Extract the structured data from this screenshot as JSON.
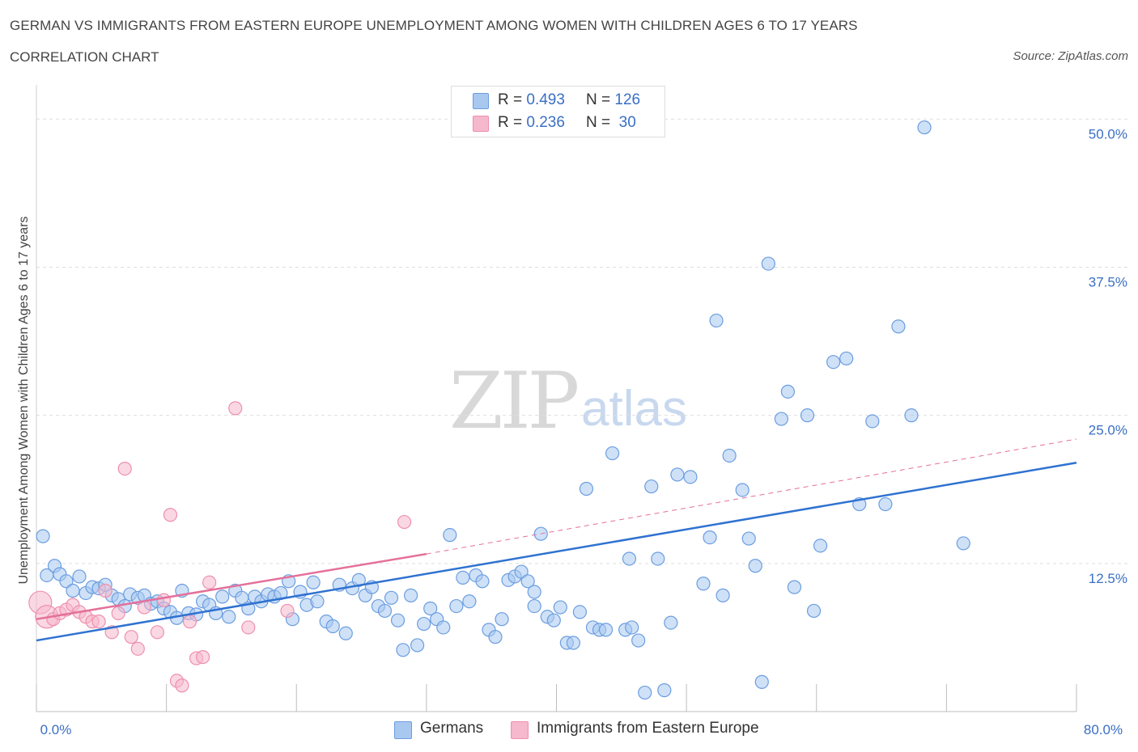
{
  "title": "GERMAN VS IMMIGRANTS FROM EASTERN EUROPE UNEMPLOYMENT AMONG WOMEN WITH CHILDREN AGES 6 TO 17 YEARS",
  "subtitle": "CORRELATION CHART",
  "source": "Source: ZipAtlas.com",
  "watermark": {
    "zip": "ZIP",
    "atlas": "atlas"
  },
  "legend": {
    "rows": [
      {
        "r_label": "R = ",
        "r_value": "0.493",
        "n_label": "N = ",
        "n_value": "126",
        "color": "#a8c8f0"
      },
      {
        "r_label": "R = ",
        "r_value": "0.236",
        "n_label": "N = ",
        "n_value": " 30",
        "color": "#f5b8cc"
      }
    ]
  },
  "bottom_legend": [
    {
      "label": "Germans",
      "color": "#a8c8f0"
    },
    {
      "label": "Immigrants from Eastern Europe",
      "color": "#f5b8cc"
    }
  ],
  "chart_data": {
    "type": "scatter",
    "title": "",
    "xlabel": "",
    "ylabel": "Unemployment Among Women with Children Ages 6 to 17 years",
    "xlim": [
      0,
      80
    ],
    "ylim": [
      0,
      52
    ],
    "x_tick_labels": [
      {
        "value": 0,
        "label": "0.0%"
      },
      {
        "value": 80,
        "label": "80.0%"
      }
    ],
    "y_tick_labels": [
      {
        "value": 12.5,
        "label": "12.5%"
      },
      {
        "value": 25,
        "label": "25.0%"
      },
      {
        "value": 37.5,
        "label": "37.5%"
      },
      {
        "value": 50,
        "label": "50.0%"
      }
    ],
    "grid": true,
    "series": [
      {
        "name": "Germans",
        "color": "#6b9de0",
        "fill": "#a8c8f0",
        "trend": {
          "x": [
            0,
            80
          ],
          "y": [
            6.0,
            21.0
          ],
          "style": "solid",
          "color": "#2f72d0"
        },
        "points": [
          [
            0.5,
            14.8
          ],
          [
            0.8,
            11.5
          ],
          [
            1.4,
            12.3
          ],
          [
            1.8,
            11.6
          ],
          [
            2.3,
            11.0
          ],
          [
            2.8,
            10.2
          ],
          [
            3.3,
            11.4
          ],
          [
            3.8,
            10.0
          ],
          [
            4.3,
            10.5
          ],
          [
            4.8,
            10.4
          ],
          [
            5.3,
            10.7
          ],
          [
            5.8,
            9.8
          ],
          [
            6.3,
            9.5
          ],
          [
            6.8,
            8.9
          ],
          [
            7.2,
            9.9
          ],
          [
            7.8,
            9.6
          ],
          [
            8.3,
            9.8
          ],
          [
            8.8,
            9.1
          ],
          [
            9.3,
            9.3
          ],
          [
            9.8,
            8.7
          ],
          [
            10.3,
            8.4
          ],
          [
            10.8,
            7.9
          ],
          [
            11.2,
            10.2
          ],
          [
            11.7,
            8.3
          ],
          [
            12.3,
            8.2
          ],
          [
            12.8,
            9.3
          ],
          [
            13.3,
            9.0
          ],
          [
            13.8,
            8.3
          ],
          [
            14.3,
            9.7
          ],
          [
            14.8,
            8.0
          ],
          [
            15.3,
            10.2
          ],
          [
            15.8,
            9.6
          ],
          [
            16.3,
            8.7
          ],
          [
            16.8,
            9.7
          ],
          [
            17.3,
            9.3
          ],
          [
            17.8,
            9.9
          ],
          [
            18.3,
            9.7
          ],
          [
            18.8,
            10.0
          ],
          [
            19.4,
            11.0
          ],
          [
            19.7,
            7.8
          ],
          [
            20.3,
            10.1
          ],
          [
            20.8,
            9.0
          ],
          [
            21.3,
            10.9
          ],
          [
            21.6,
            9.3
          ],
          [
            22.3,
            7.6
          ],
          [
            22.8,
            7.2
          ],
          [
            23.3,
            10.7
          ],
          [
            23.8,
            6.6
          ],
          [
            24.3,
            10.4
          ],
          [
            24.8,
            11.1
          ],
          [
            25.3,
            9.8
          ],
          [
            25.8,
            10.5
          ],
          [
            26.3,
            8.9
          ],
          [
            26.8,
            8.5
          ],
          [
            27.3,
            9.6
          ],
          [
            27.8,
            7.7
          ],
          [
            28.2,
            5.2
          ],
          [
            28.8,
            9.8
          ],
          [
            29.3,
            5.6
          ],
          [
            29.8,
            7.4
          ],
          [
            30.3,
            8.7
          ],
          [
            30.8,
            7.8
          ],
          [
            31.3,
            7.1
          ],
          [
            31.8,
            14.9
          ],
          [
            32.3,
            8.9
          ],
          [
            32.8,
            11.3
          ],
          [
            33.3,
            9.3
          ],
          [
            33.8,
            11.5
          ],
          [
            34.3,
            11.0
          ],
          [
            34.8,
            6.9
          ],
          [
            35.3,
            6.3
          ],
          [
            35.8,
            7.8
          ],
          [
            36.3,
            11.1
          ],
          [
            36.8,
            11.4
          ],
          [
            37.3,
            11.8
          ],
          [
            37.8,
            11.0
          ],
          [
            38.3,
            10.1
          ],
          [
            38.8,
            15.0
          ],
          [
            39.3,
            8.0
          ],
          [
            39.8,
            7.7
          ],
          [
            40.3,
            8.8
          ],
          [
            40.8,
            5.8
          ],
          [
            41.3,
            5.8
          ],
          [
            41.8,
            8.4
          ],
          [
            42.3,
            18.8
          ],
          [
            42.8,
            7.1
          ],
          [
            43.3,
            6.9
          ],
          [
            44.3,
            21.8
          ],
          [
            45.3,
            6.9
          ],
          [
            45.6,
            12.9
          ],
          [
            45.8,
            7.1
          ],
          [
            46.3,
            6.0
          ],
          [
            47.3,
            19.0
          ],
          [
            47.8,
            12.9
          ],
          [
            48.3,
            1.8
          ],
          [
            48.8,
            7.5
          ],
          [
            49.3,
            20.0
          ],
          [
            50.3,
            19.8
          ],
          [
            51.3,
            10.8
          ],
          [
            51.8,
            14.7
          ],
          [
            52.3,
            33.0
          ],
          [
            52.8,
            9.8
          ],
          [
            53.3,
            21.6
          ],
          [
            54.3,
            18.7
          ],
          [
            54.8,
            14.6
          ],
          [
            55.3,
            12.3
          ],
          [
            56.3,
            37.8
          ],
          [
            57.3,
            24.7
          ],
          [
            57.8,
            27.0
          ],
          [
            58.3,
            10.5
          ],
          [
            59.3,
            25.0
          ],
          [
            59.8,
            8.5
          ],
          [
            60.3,
            14.0
          ],
          [
            61.3,
            29.5
          ],
          [
            62.3,
            29.8
          ],
          [
            63.3,
            17.5
          ],
          [
            64.3,
            24.5
          ],
          [
            65.3,
            17.5
          ],
          [
            66.3,
            32.5
          ],
          [
            67.3,
            25.0
          ],
          [
            68.3,
            49.3
          ],
          [
            71.3,
            14.2
          ],
          [
            55.8,
            2.5
          ],
          [
            46.8,
            1.6
          ],
          [
            43.8,
            6.9
          ],
          [
            38.3,
            8.9
          ]
        ]
      },
      {
        "name": "Immigrants from Eastern Europe",
        "color": "#ee8fae",
        "fill": "#f5b8cc",
        "trend_solid": {
          "x": [
            0,
            30
          ],
          "y": [
            7.8,
            13.3
          ],
          "style": "solid",
          "color": "#e4709a"
        },
        "trend_dashed": {
          "x": [
            30,
            80
          ],
          "y": [
            13.3,
            23.0
          ],
          "style": "dashed",
          "color": "#e4709a"
        },
        "points": [
          [
            0.3,
            9.2
          ],
          [
            0.8,
            8.0
          ],
          [
            1.3,
            7.8
          ],
          [
            1.8,
            8.3
          ],
          [
            2.3,
            8.6
          ],
          [
            2.8,
            9.0
          ],
          [
            3.3,
            8.4
          ],
          [
            3.8,
            8.0
          ],
          [
            4.3,
            7.6
          ],
          [
            4.8,
            7.6
          ],
          [
            5.3,
            10.2
          ],
          [
            5.8,
            6.7
          ],
          [
            6.3,
            8.3
          ],
          [
            6.8,
            20.5
          ],
          [
            7.3,
            6.3
          ],
          [
            7.8,
            5.3
          ],
          [
            8.3,
            8.8
          ],
          [
            9.3,
            6.7
          ],
          [
            9.8,
            9.4
          ],
          [
            10.3,
            16.6
          ],
          [
            10.8,
            2.6
          ],
          [
            11.2,
            2.2
          ],
          [
            11.8,
            7.6
          ],
          [
            12.3,
            4.5
          ],
          [
            12.8,
            4.6
          ],
          [
            13.3,
            10.9
          ],
          [
            15.3,
            25.6
          ],
          [
            16.3,
            7.1
          ],
          [
            19.3,
            8.5
          ],
          [
            28.3,
            16.0
          ]
        ]
      }
    ]
  }
}
